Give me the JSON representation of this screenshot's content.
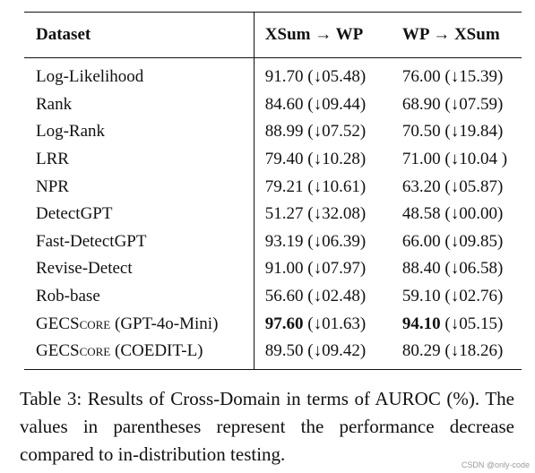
{
  "table": {
    "headers": [
      "Dataset",
      "XSum → WP",
      "WP → XSum"
    ],
    "rows": [
      {
        "dataset": "Log-Likelihood",
        "xsum_wp": "91.70",
        "xsum_wp_drop": "(↓05.48)",
        "wp_xsum": "76.00",
        "wp_xsum_drop": "(↓15.39)"
      },
      {
        "dataset": "Rank",
        "xsum_wp": "84.60",
        "xsum_wp_drop": "(↓09.44)",
        "wp_xsum": "68.90",
        "wp_xsum_drop": "(↓07.59)"
      },
      {
        "dataset": "Log-Rank",
        "xsum_wp": "88.99",
        "xsum_wp_drop": "(↓07.52)",
        "wp_xsum": "70.50",
        "wp_xsum_drop": "(↓19.84)"
      },
      {
        "dataset": "LRR",
        "xsum_wp": "79.40",
        "xsum_wp_drop": "(↓10.28)",
        "wp_xsum": "71.00",
        "wp_xsum_drop": "(↓10.04 )"
      },
      {
        "dataset": "NPR",
        "xsum_wp": "79.21",
        "xsum_wp_drop": "(↓10.61)",
        "wp_xsum": "63.20",
        "wp_xsum_drop": "(↓05.87)"
      },
      {
        "dataset": "DetectGPT",
        "xsum_wp": "51.27",
        "xsum_wp_drop": "(↓32.08)",
        "wp_xsum": "48.58",
        "wp_xsum_drop": "(↓00.00)"
      },
      {
        "dataset": "Fast-DetectGPT",
        "xsum_wp": "93.19",
        "xsum_wp_drop": "(↓06.39)",
        "wp_xsum": "66.00",
        "wp_xsum_drop": "(↓09.85)"
      },
      {
        "dataset": "Revise-Detect",
        "xsum_wp": "91.00",
        "xsum_wp_drop": "(↓07.97)",
        "wp_xsum": "88.40",
        "wp_xsum_drop": "(↓06.58)"
      },
      {
        "dataset": "Rob-base",
        "xsum_wp": "56.60",
        "xsum_wp_drop": "(↓02.48)",
        "wp_xsum": "59.10",
        "wp_xsum_drop": "(↓02.76)"
      },
      {
        "dataset_name": "GECScore",
        "dataset_variant": "(GPT-4o-Mini)",
        "xsum_wp": "97.60",
        "xsum_wp_drop": "(↓01.63)",
        "wp_xsum": "94.10",
        "wp_xsum_drop": "(↓05.15)"
      },
      {
        "dataset_name": "GECScore",
        "dataset_variant": "(COEDIT-L)",
        "xsum_wp": "89.50",
        "xsum_wp_drop": "(↓09.42)",
        "wp_xsum": "80.29",
        "wp_xsum_drop": "(↓18.26)"
      }
    ]
  },
  "caption": "Table 3: Results of Cross-Domain in terms of AUROC (%). The values in parentheses represent the performance decrease compared to in-distribution testing.",
  "watermark": "CSDN @only-code"
}
